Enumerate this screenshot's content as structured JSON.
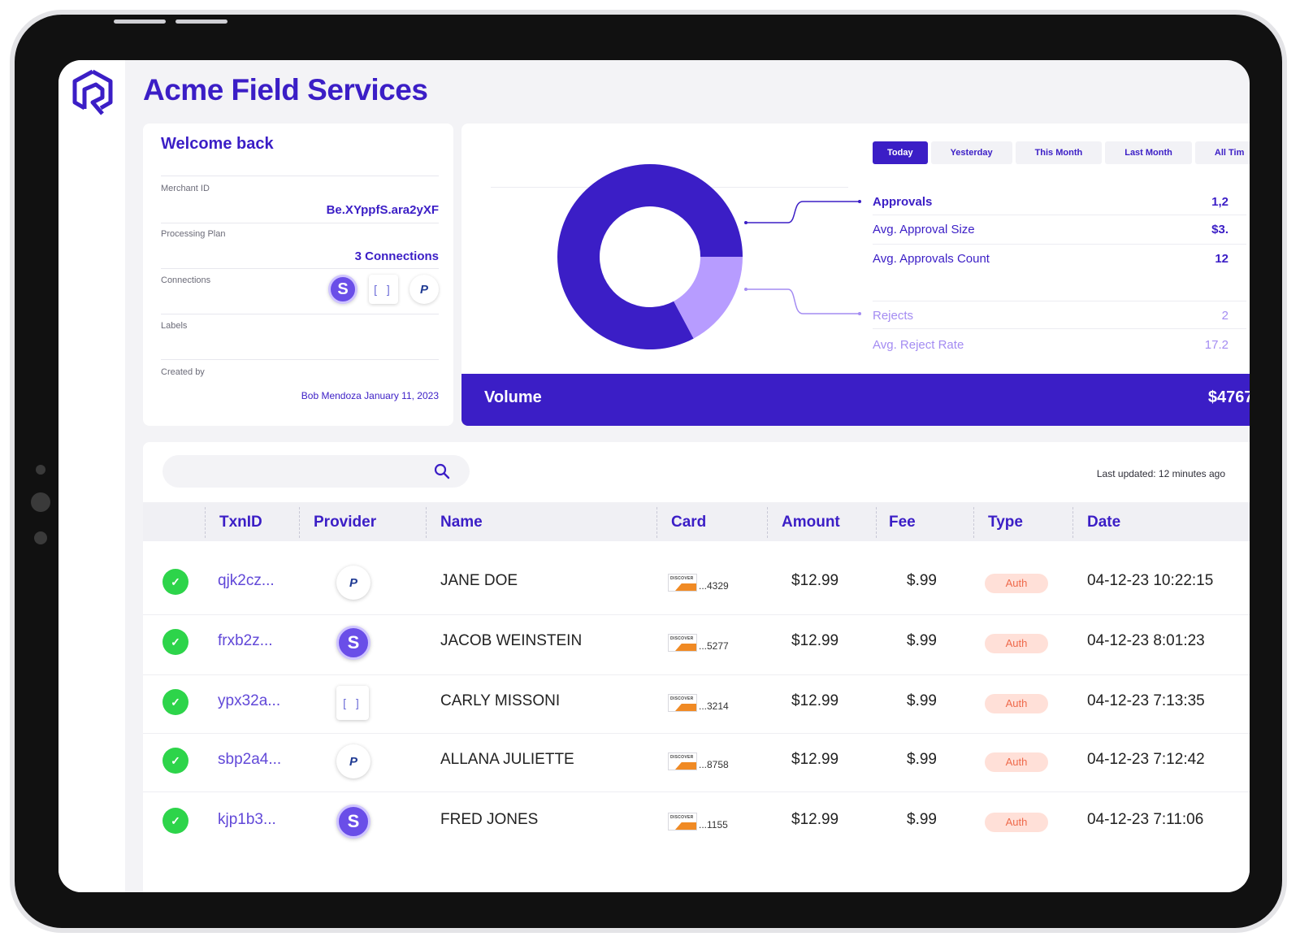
{
  "app": {
    "title": "Acme Field Services"
  },
  "welcome": {
    "heading": "Welcome back",
    "merchant_id_label": "Merchant ID",
    "merchant_id": "Be.XYppfS.ara2yXF",
    "plan_label": "Processing Plan",
    "plan_value": "3 Connections",
    "connections_label": "Connections",
    "connections": [
      {
        "icon": "stripe-icon",
        "glyph": "S"
      },
      {
        "icon": "bracket-icon",
        "glyph": "[ ]"
      },
      {
        "icon": "paypal-icon",
        "glyph": "P"
      }
    ],
    "labels_label": "Labels",
    "created_label": "Created by",
    "created_value": "Bob Mendoza January 11, 2023"
  },
  "summary": {
    "tabs": [
      "Today",
      "Yesterday",
      "This Month",
      "Last Month",
      "All Tim"
    ],
    "active_tab": "Today",
    "stats": [
      {
        "label": "Approvals",
        "value": "1,2"
      },
      {
        "label": "Avg. Approval Size",
        "value": "$3."
      },
      {
        "label": "Avg. Approvals Count",
        "value": "12"
      },
      {
        "label": "Rejects",
        "value": "2"
      },
      {
        "label": "Avg. Reject Rate",
        "value": "17.2"
      }
    ],
    "donut": {
      "approved_fraction": 0.828,
      "rejected_fraction": 0.172,
      "approved_color": "#3b1ec6",
      "rejected_color": "#b79cff"
    },
    "volume_label": "Volume",
    "volume_value": "$4767."
  },
  "table": {
    "search_placeholder": "",
    "last_updated": "Last updated: 12 minutes ago",
    "columns": [
      "TxnID",
      "Provider",
      "Name",
      "Card",
      "Amount",
      "Fee",
      "Type",
      "Date"
    ],
    "rows": [
      {
        "txn": "qjk2cz...",
        "provider": "paypal",
        "name": "JANE DOE",
        "card_brand": "DISCOVER",
        "card_last4": "...4329",
        "amount": "$12.99",
        "fee": "$.99",
        "type": "Auth",
        "date": "04-12-23 10:22:15"
      },
      {
        "txn": "frxb2z...",
        "provider": "stripe",
        "name": "JACOB WEINSTEIN",
        "card_brand": "DISCOVER",
        "card_last4": "...5277",
        "amount": "$12.99",
        "fee": "$.99",
        "type": "Auth",
        "date": "04-12-23 8:01:23"
      },
      {
        "txn": "ypx32a...",
        "provider": "bracket",
        "name": "CARLY MISSONI",
        "card_brand": "DISCOVER",
        "card_last4": "...3214",
        "amount": "$12.99",
        "fee": "$.99",
        "type": "Auth",
        "date": "04-12-23 7:13:35"
      },
      {
        "txn": "sbp2a4...",
        "provider": "paypal",
        "name": "ALLANA JULIETTE",
        "card_brand": "DISCOVER",
        "card_last4": "...8758",
        "amount": "$12.99",
        "fee": "$.99",
        "type": "Auth",
        "date": "04-12-23 7:12:42"
      },
      {
        "txn": "kjp1b3...",
        "provider": "stripe",
        "name": "FRED JONES",
        "card_brand": "DISCOVER",
        "card_last4": "...1155",
        "amount": "$12.99",
        "fee": "$.99",
        "type": "Auth",
        "date": "04-12-23 7:11:06"
      }
    ]
  }
}
